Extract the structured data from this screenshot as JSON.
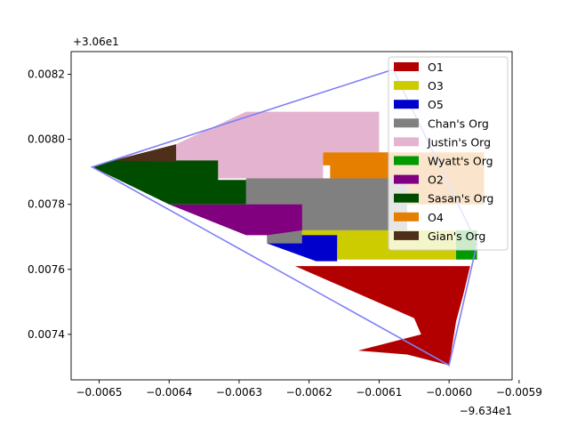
{
  "chart_data": {
    "type": "area",
    "title": "",
    "xlabel": "",
    "ylabel": "",
    "x_offset_label": "−9.634e1",
    "y_offset_label": "+3.06e1",
    "xlim": [
      -0.00654,
      -0.00591
    ],
    "ylim": [
      0.00726,
      0.00827
    ],
    "x_ticks": [
      -0.0065,
      -0.0064,
      -0.0063,
      -0.0062,
      -0.0061,
      -0.006,
      -0.0059
    ],
    "x_tick_labels": [
      "−0.0065",
      "−0.0064",
      "−0.0063",
      "−0.0062",
      "−0.0061",
      "−0.0060",
      "−0.0059"
    ],
    "y_ticks": [
      0.0074,
      0.0076,
      0.0078,
      0.008,
      0.0082
    ],
    "y_tick_labels": [
      "0.0074",
      "0.0076",
      "0.0078",
      "0.0080",
      "0.0082"
    ],
    "grid": false,
    "legend_position": "top-right",
    "boundary": {
      "color": "#7f7ff5",
      "points": [
        [
          -0.00651,
          0.007915
        ],
        [
          -0.00608,
          0.008215
        ],
        [
          -0.00596,
          0.00768
        ],
        [
          -0.006,
          0.007305
        ],
        [
          -0.00651,
          0.007915
        ]
      ]
    },
    "series": [
      {
        "name": "O1",
        "color": "#b20000",
        "polygon": [
          [
            -0.00622,
            0.00761
          ],
          [
            -0.00597,
            0.00761
          ],
          [
            -0.00598,
            0.00752
          ],
          [
            -0.00599,
            0.00744
          ],
          [
            -0.006,
            0.007305
          ],
          [
            -0.00606,
            0.007338
          ],
          [
            -0.00613,
            0.00735
          ],
          [
            -0.00604,
            0.0074
          ],
          [
            -0.00605,
            0.00745
          ],
          [
            -0.00622,
            0.00761
          ]
        ]
      },
      {
        "name": "O3",
        "color": "#cccc00",
        "polygon": [
          [
            -0.00621,
            0.00772
          ],
          [
            -0.00599,
            0.00772
          ],
          [
            -0.00599,
            0.00763
          ],
          [
            -0.00616,
            0.00763
          ],
          [
            -0.00616,
            0.00767
          ],
          [
            -0.00621,
            0.00767
          ],
          [
            -0.00621,
            0.00772
          ]
        ]
      },
      {
        "name": "O5",
        "color": "#0000cc",
        "polygon": [
          [
            -0.00626,
            0.007705
          ],
          [
            -0.00616,
            0.007705
          ],
          [
            -0.00616,
            0.007625
          ],
          [
            -0.00619,
            0.007625
          ],
          [
            -0.00626,
            0.00768
          ],
          [
            -0.00626,
            0.007705
          ]
        ]
      },
      {
        "name": "Chan's Org",
        "color": "#808080",
        "polygon": [
          [
            -0.00629,
            0.00788
          ],
          [
            -0.00606,
            0.00788
          ],
          [
            -0.00606,
            0.00772
          ],
          [
            -0.00621,
            0.00772
          ],
          [
            -0.00621,
            0.00768
          ],
          [
            -0.00626,
            0.00768
          ],
          [
            -0.00626,
            0.007705
          ],
          [
            -0.00629,
            0.00774
          ],
          [
            -0.00629,
            0.00788
          ]
        ]
      },
      {
        "name": "Justin's Org",
        "color": "#e4b3cf",
        "polygon": [
          [
            -0.00639,
            0.007985
          ],
          [
            -0.00629,
            0.008085
          ],
          [
            -0.0061,
            0.008085
          ],
          [
            -0.0061,
            0.00796
          ],
          [
            -0.00618,
            0.00796
          ],
          [
            -0.00618,
            0.00788
          ],
          [
            -0.00633,
            0.00788
          ],
          [
            -0.00633,
            0.00793
          ],
          [
            -0.00639,
            0.00793
          ],
          [
            -0.00639,
            0.007985
          ]
        ]
      },
      {
        "name": "Wyatt's Org",
        "color": "#009900",
        "polygon": [
          [
            -0.00599,
            0.00772
          ],
          [
            -0.00596,
            0.00772
          ],
          [
            -0.00596,
            0.00763
          ],
          [
            -0.00599,
            0.00763
          ],
          [
            -0.00599,
            0.00772
          ]
        ]
      },
      {
        "name": "O2",
        "color": "#800080",
        "polygon": [
          [
            -0.0064,
            0.0078
          ],
          [
            -0.00621,
            0.0078
          ],
          [
            -0.00621,
            0.00772
          ],
          [
            -0.00626,
            0.007705
          ],
          [
            -0.00629,
            0.007705
          ],
          [
            -0.0064,
            0.0078
          ]
        ]
      },
      {
        "name": "Sasan's Org",
        "color": "#004d00",
        "polygon": [
          [
            -0.00651,
            0.007915
          ],
          [
            -0.00648,
            0.007935
          ],
          [
            -0.00633,
            0.007935
          ],
          [
            -0.00633,
            0.007875
          ],
          [
            -0.00629,
            0.007875
          ],
          [
            -0.00629,
            0.0078
          ],
          [
            -0.0064,
            0.0078
          ],
          [
            -0.00651,
            0.007915
          ]
        ]
      },
      {
        "name": "O4",
        "color": "#e67e00",
        "polygon": [
          [
            -0.00618,
            0.00796
          ],
          [
            -0.00595,
            0.00796
          ],
          [
            -0.00595,
            0.0078
          ],
          [
            -0.00606,
            0.0078
          ],
          [
            -0.00606,
            0.00788
          ],
          [
            -0.00617,
            0.00788
          ],
          [
            -0.00617,
            0.00792
          ],
          [
            -0.00618,
            0.00792
          ],
          [
            -0.00618,
            0.00796
          ]
        ]
      },
      {
        "name": "Gian's Org",
        "color": "#4d2f1a",
        "polygon": [
          [
            -0.00648,
            0.007935
          ],
          [
            -0.00639,
            0.007985
          ],
          [
            -0.00639,
            0.00793
          ],
          [
            -0.00648,
            0.007935
          ]
        ]
      }
    ]
  }
}
